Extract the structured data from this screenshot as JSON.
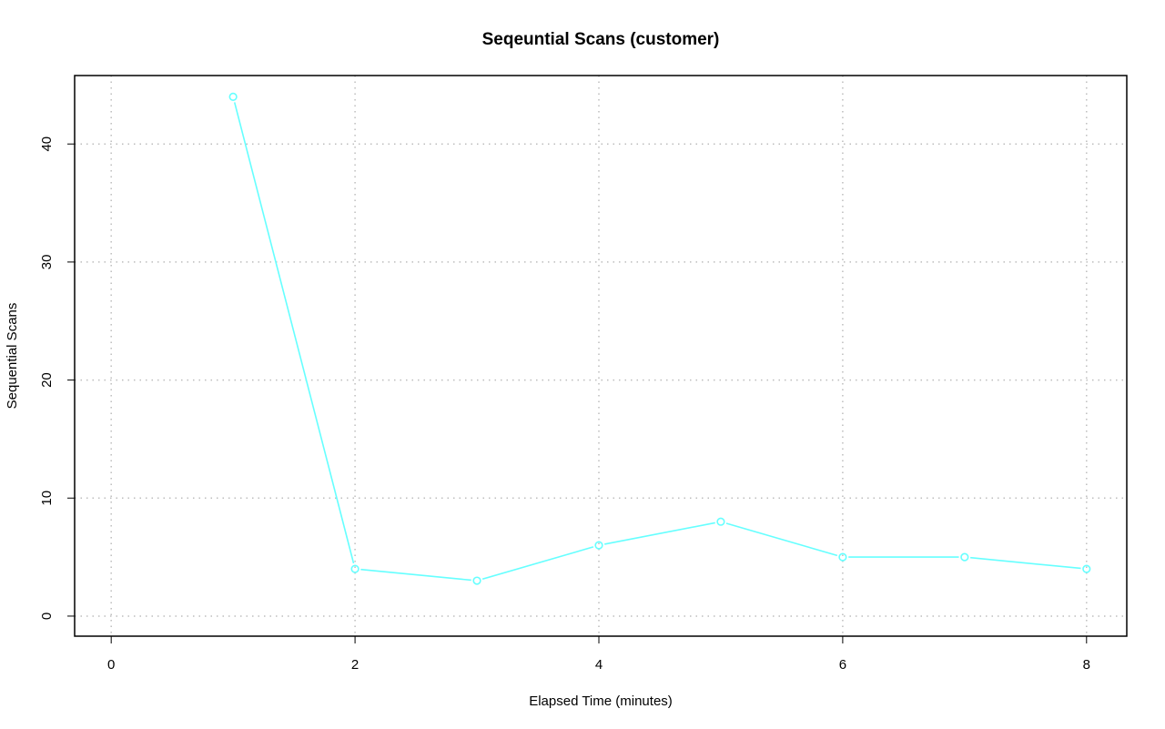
{
  "chart_data": {
    "type": "line",
    "title": "Seqeuntial Scans (customer)",
    "xlabel": "Elapsed Time (minutes)",
    "ylabel": "Sequential Scans",
    "xlim": [
      -0.3,
      8.33
    ],
    "ylim": [
      -1.7,
      45.8
    ],
    "x_ticks": [
      0,
      2,
      4,
      6,
      8
    ],
    "y_ticks": [
      0,
      10,
      20,
      30,
      40
    ],
    "grid": true,
    "series": [
      {
        "x": [
          1,
          2,
          3,
          4,
          5,
          6,
          7,
          8
        ],
        "values": [
          44,
          4,
          3,
          6,
          8,
          5,
          5,
          4
        ],
        "color": "#66FFFF",
        "markers": "open-circle"
      }
    ]
  }
}
